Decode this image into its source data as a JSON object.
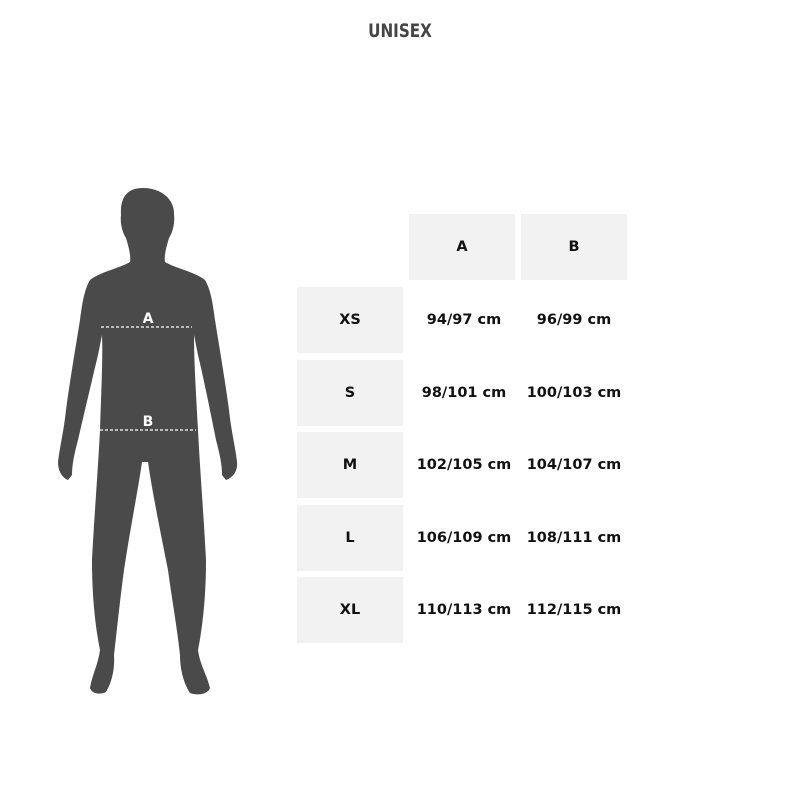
{
  "title": "UNISEX",
  "figure": {
    "label_a": "A",
    "label_b": "B",
    "silhouette_color": "#4a4a4a"
  },
  "table": {
    "headers": [
      "A",
      "B"
    ],
    "rows": [
      {
        "size": "XS",
        "a": "94/97 cm",
        "b": "96/99 cm"
      },
      {
        "size": "S",
        "a": "98/101 cm",
        "b": "100/103 cm"
      },
      {
        "size": "M",
        "a": "102/105 cm",
        "b": "104/107 cm"
      },
      {
        "size": "L",
        "a": "106/109 cm",
        "b": "108/111 cm"
      },
      {
        "size": "XL",
        "a": "110/113 cm",
        "b": "112/115 cm"
      }
    ]
  }
}
